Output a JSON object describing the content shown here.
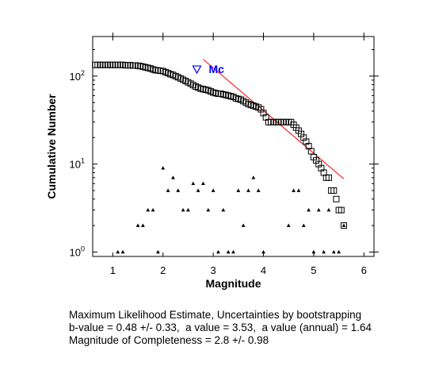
{
  "chart_data": {
    "type": "scatter",
    "xlabel": "Magnitude",
    "ylabel": "Cumulative Number",
    "xlim": [
      0.6,
      6.2
    ],
    "ylim_log10": [
      -0.05,
      2.45
    ],
    "y_scale": "log",
    "x_ticks": [
      1,
      2,
      3,
      4,
      5,
      6
    ],
    "x_tick_labels": [
      "1",
      "2",
      "3",
      "4",
      "5",
      "6"
    ],
    "y_ticks": [
      1,
      10,
      100
    ],
    "y_tick_labels": [
      {
        "base": "10",
        "exp": "0"
      },
      {
        "base": "10",
        "exp": "1"
      },
      {
        "base": "10",
        "exp": "2"
      }
    ],
    "grid": false,
    "series": [
      {
        "marker": "square",
        "x": [
          0.65,
          0.7,
          0.75,
          0.8,
          0.85,
          0.9,
          0.95,
          1.0,
          1.05,
          1.1,
          1.15,
          1.2,
          1.25,
          1.3,
          1.35,
          1.4,
          1.45,
          1.5,
          1.55,
          1.6,
          1.65,
          1.7,
          1.75,
          1.8,
          1.85,
          1.9,
          1.95,
          2.0,
          2.05,
          2.1,
          2.15,
          2.2,
          2.25,
          2.3,
          2.35,
          2.4,
          2.45,
          2.5,
          2.55,
          2.6,
          2.65,
          2.7,
          2.75,
          2.8,
          2.85,
          2.9,
          2.95,
          3.0,
          3.05,
          3.1,
          3.15,
          3.2,
          3.25,
          3.3,
          3.35,
          3.4,
          3.45,
          3.5,
          3.55,
          3.6,
          3.65,
          3.7,
          3.75,
          3.8,
          3.85,
          3.9,
          3.95,
          4.0,
          4.05,
          4.1,
          4.15,
          4.2,
          4.25,
          4.3,
          4.35,
          4.4,
          4.45,
          4.5,
          4.55,
          4.6,
          4.65,
          4.7,
          4.75,
          4.8,
          4.85,
          4.9,
          4.95,
          5.0,
          5.05,
          5.1,
          5.15,
          5.2,
          5.25,
          5.3,
          5.35,
          5.4,
          5.45,
          5.5,
          5.55,
          5.6
        ],
        "y": [
          134,
          134,
          134,
          134,
          134,
          134,
          134,
          134,
          134,
          134,
          134,
          134,
          133,
          133,
          133,
          132,
          132,
          131,
          130,
          128,
          126,
          124,
          122,
          119,
          117,
          116,
          115,
          114,
          111,
          108,
          105,
          103,
          100,
          97,
          94,
          91,
          88,
          85,
          82,
          79,
          76,
          74,
          72,
          71,
          70,
          69,
          67,
          65,
          64,
          63,
          63,
          62,
          61,
          60,
          59,
          58,
          56,
          55,
          54,
          52,
          50,
          48,
          47,
          46,
          45,
          44,
          42,
          38,
          34,
          30,
          30,
          30,
          30,
          30,
          30,
          30,
          30,
          30,
          30,
          28,
          26,
          24,
          22,
          20,
          18,
          16,
          14,
          12,
          11,
          10,
          9,
          8,
          7,
          7,
          5,
          5,
          4,
          3,
          3,
          2
        ]
      },
      {
        "marker": "triangle",
        "x": [
          1.1,
          1.2,
          1.5,
          1.6,
          1.7,
          1.8,
          1.9,
          2.0,
          2.1,
          2.2,
          2.3,
          2.4,
          2.5,
          2.6,
          2.7,
          2.8,
          2.9,
          3.0,
          3.1,
          3.2,
          3.3,
          3.4,
          3.5,
          3.6,
          3.7,
          3.8,
          3.9,
          4.0,
          4.5,
          4.6,
          4.7,
          4.8,
          4.9,
          5.0,
          5.1,
          5.2,
          5.3,
          5.4,
          5.5,
          5.6
        ],
        "y": [
          1,
          1,
          2,
          2,
          3,
          3,
          1,
          9,
          5,
          7,
          5,
          3,
          3,
          6,
          5,
          6,
          3,
          5,
          1,
          3,
          1,
          1,
          5,
          2,
          5,
          7,
          5,
          1,
          2,
          5,
          5,
          2,
          3,
          1,
          3,
          1,
          3,
          1,
          1,
          2
        ]
      },
      {
        "type": "line",
        "color": "#ff0000",
        "x": [
          2.8,
          5.6
        ],
        "y": [
          155,
          6.8
        ]
      }
    ],
    "annotation": {
      "marker": "inverted-triangle",
      "x": 2.8,
      "y": 120,
      "label": "Mc",
      "color": "#0000ff"
    }
  },
  "caption": {
    "line1": "Maximum Likelihood Estimate, Uncertainties by bootstrapping",
    "line2": "b-value = 0.48 +/- 0.33,  a value = 3.53,  a value (annual) = 1.64",
    "line3": "Magnitude of Completeness = 2.8 +/- 0.98"
  }
}
